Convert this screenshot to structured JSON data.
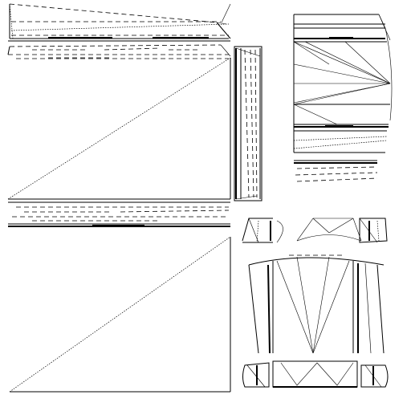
{
  "colors": {
    "background": "#ffffff",
    "stroke": "#000000"
  }
}
